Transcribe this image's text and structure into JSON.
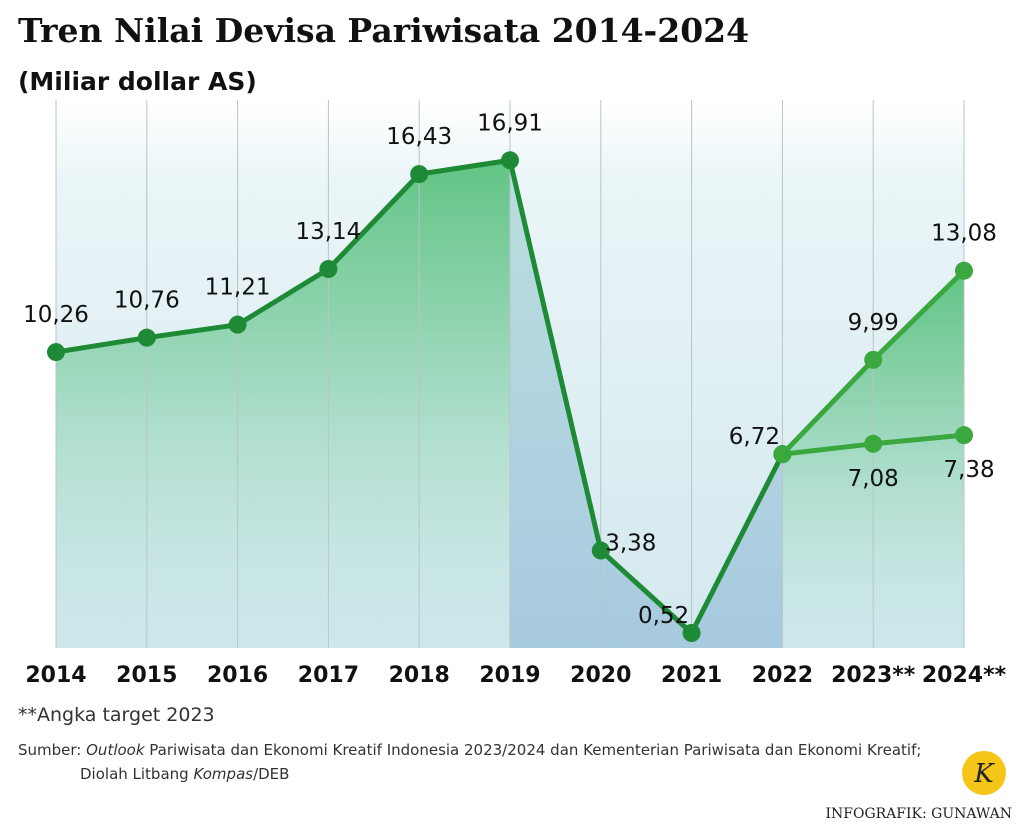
{
  "chart_data": {
    "type": "line",
    "title": "Tren Nilai Devisa Pariwisata 2014-2024",
    "subtitle": "(Miliar dollar AS)",
    "categories": [
      "2014",
      "2015",
      "2016",
      "2017",
      "2018",
      "2019",
      "2020",
      "2021",
      "2022",
      "2023**",
      "2024**"
    ],
    "series": [
      {
        "color": "#1f8a35",
        "values": [
          10.26,
          10.76,
          11.21,
          13.14,
          16.43,
          16.91,
          3.38,
          0.52,
          6.72,
          null,
          null
        ],
        "value_labels": [
          "10,26",
          "10,76",
          "11,21",
          "13,14",
          "16,43",
          "16,91",
          "3,38",
          "0,52",
          "6,72",
          null,
          null
        ]
      },
      {
        "color": "#3aa83f",
        "values": [
          null,
          null,
          null,
          null,
          null,
          null,
          null,
          null,
          6.72,
          7.08,
          7.38
        ],
        "value_labels": [
          null,
          null,
          null,
          null,
          null,
          null,
          null,
          null,
          null,
          "7,08",
          "7,38"
        ]
      },
      {
        "color": "#3aa83f",
        "values": [
          null,
          null,
          null,
          null,
          null,
          null,
          null,
          null,
          6.72,
          9.99,
          13.08
        ],
        "value_labels": [
          null,
          null,
          null,
          null,
          null,
          null,
          null,
          null,
          null,
          "9,99",
          "13,08"
        ]
      }
    ],
    "ylim": [
      0,
      19
    ],
    "note": "**Angka target 2023",
    "source": [
      "Sumber: ",
      "Outlook",
      " Pariwisata dan Ekonomi Kreatif Indonesia 2023/2024 dan Kementerian Pariwisata dan Ekonomi Kreatif;",
      "Diolah Litbang ",
      "Kompas",
      "/DEB"
    ],
    "credit": "INFOGRAFIK: GUNAWAN",
    "logo": "K"
  }
}
